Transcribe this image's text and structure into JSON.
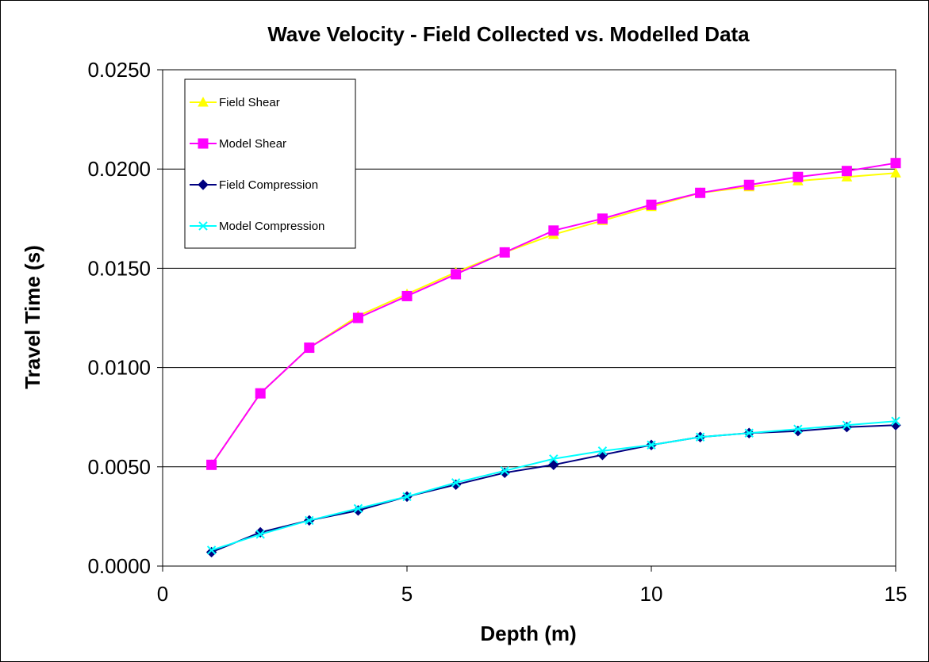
{
  "chart_data": {
    "type": "line",
    "title": "Wave Velocity - Field Collected vs. Modelled Data",
    "xlabel": "Depth (m)",
    "ylabel": "Travel Time (s)",
    "xlim": [
      0,
      15
    ],
    "ylim": [
      0,
      0.025
    ],
    "x_ticks": [
      "0",
      "5",
      "10",
      "15"
    ],
    "y_ticks": [
      "0.0000",
      "0.0050",
      "0.0100",
      "0.0150",
      "0.0200",
      "0.0250"
    ],
    "grid": "horizontal",
    "legend_position": "top-left",
    "x": [
      1,
      2,
      3,
      4,
      5,
      6,
      7,
      8,
      9,
      10,
      11,
      12,
      13,
      14,
      15
    ],
    "series": [
      {
        "name": "Field Shear",
        "color": "#ffff00",
        "marker": "triangle",
        "values": [
          0.0051,
          0.0087,
          0.011,
          0.0126,
          0.0137,
          0.0148,
          0.0158,
          0.0167,
          0.0174,
          0.0181,
          0.0188,
          0.0191,
          0.0194,
          0.0196,
          0.0198
        ]
      },
      {
        "name": "Model Shear",
        "color": "#ff00ff",
        "marker": "square",
        "values": [
          0.0051,
          0.0087,
          0.011,
          0.0125,
          0.0136,
          0.0147,
          0.0158,
          0.0169,
          0.0175,
          0.0182,
          0.0188,
          0.0192,
          0.0196,
          0.0199,
          0.0203
        ]
      },
      {
        "name": "Field Compression",
        "color": "#000080",
        "marker": "diamond",
        "values": [
          0.0007,
          0.0017,
          0.0023,
          0.0028,
          0.0035,
          0.0041,
          0.0047,
          0.0051,
          0.0056,
          0.0061,
          0.0065,
          0.0067,
          0.0068,
          0.007,
          0.0071
        ]
      },
      {
        "name": "Model Compression",
        "color": "#00ffff",
        "marker": "x",
        "values": [
          0.0008,
          0.0016,
          0.0023,
          0.0029,
          0.0035,
          0.0042,
          0.0048,
          0.0054,
          0.0058,
          0.0061,
          0.0065,
          0.0067,
          0.0069,
          0.0071,
          0.0073
        ]
      }
    ]
  }
}
